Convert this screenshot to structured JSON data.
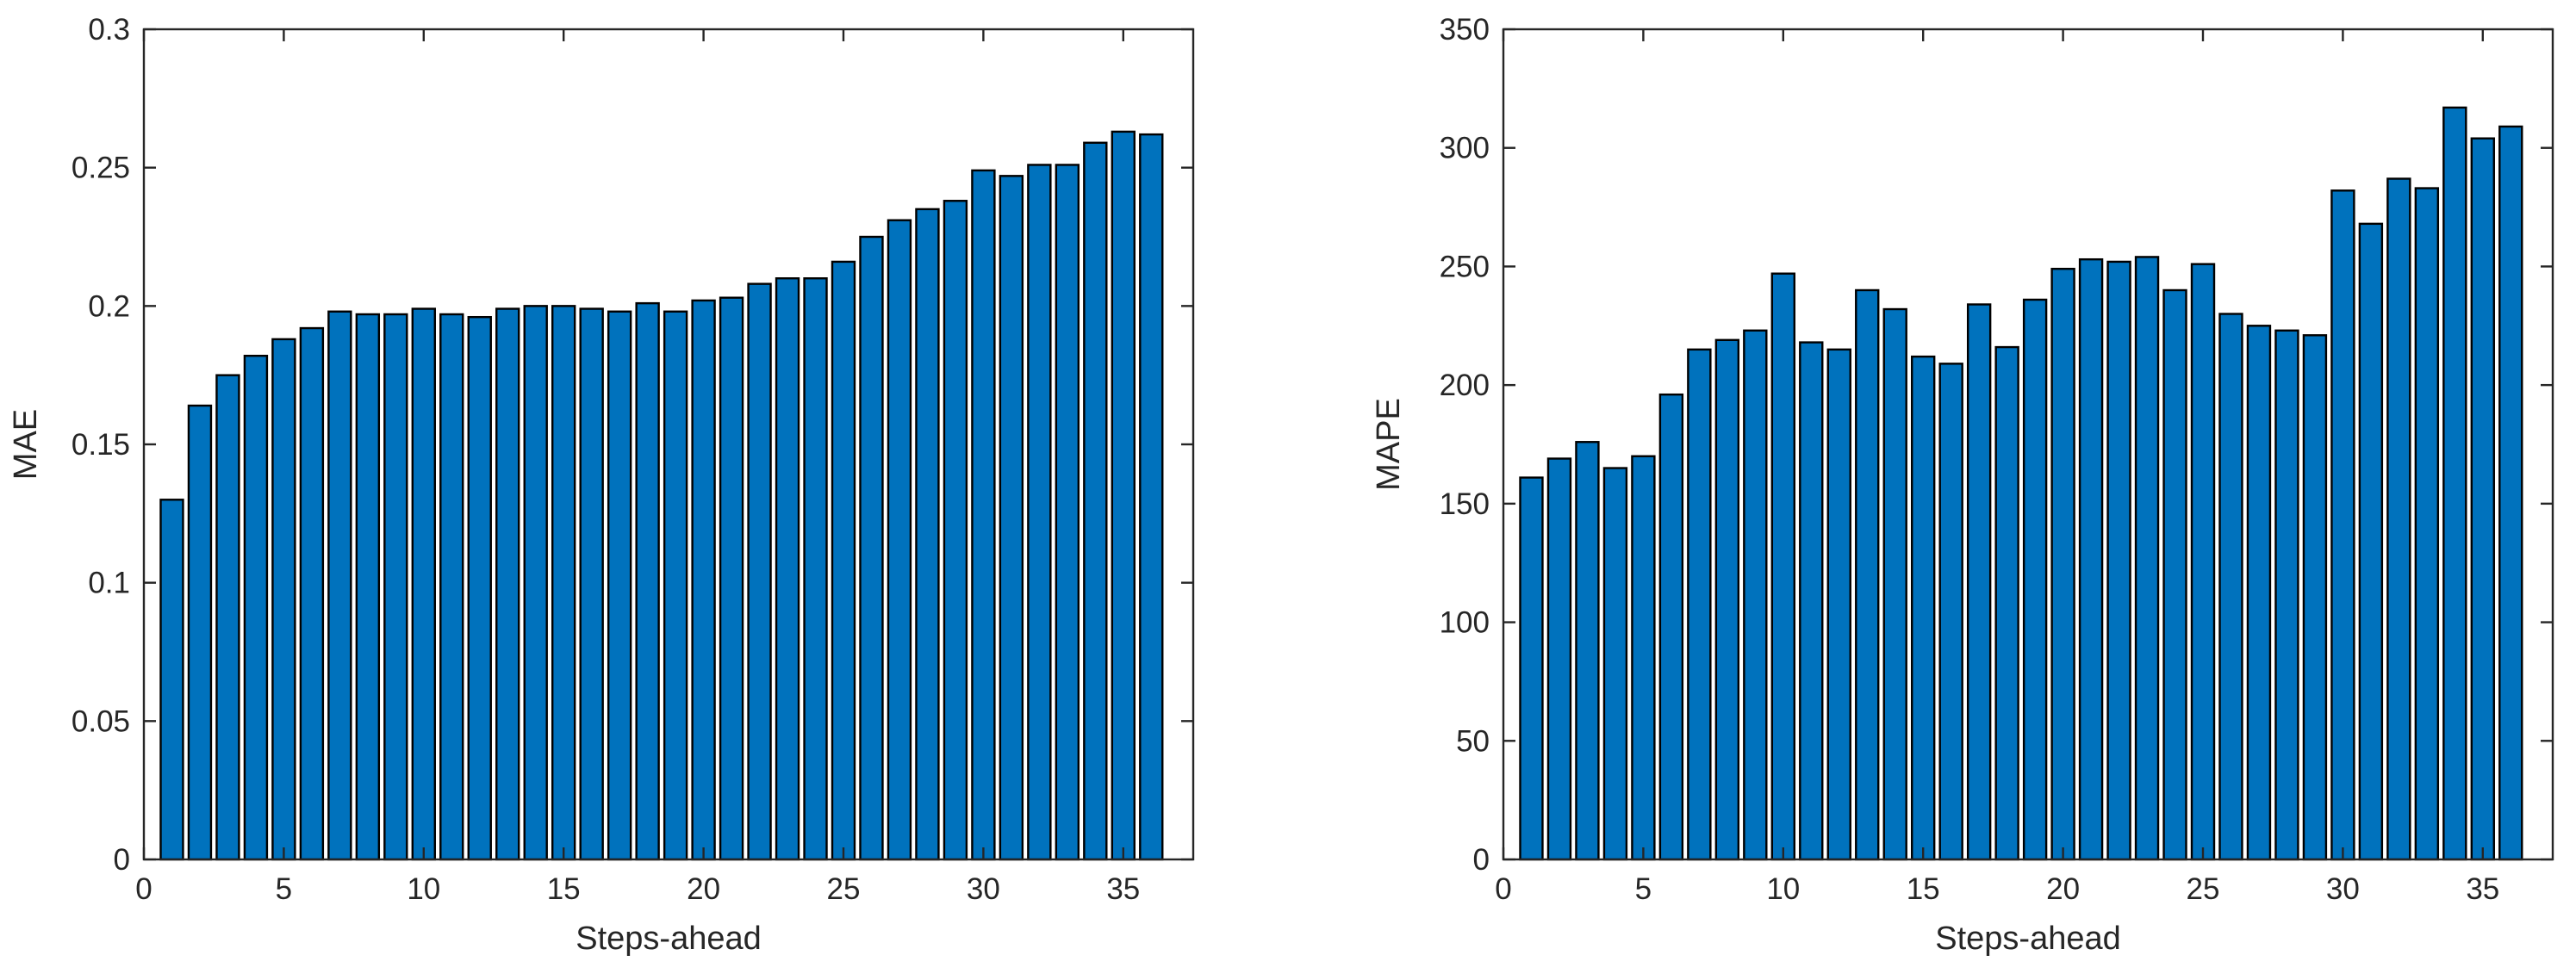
{
  "chart_data": [
    {
      "type": "bar",
      "title": "",
      "xlabel": "Steps-ahead",
      "ylabel": "MAE",
      "xlim": [
        0,
        37.5
      ],
      "ylim": [
        0,
        0.3
      ],
      "xticks": [
        0,
        5,
        10,
        15,
        20,
        25,
        30,
        35
      ],
      "xtick_labels": [
        "0",
        "5",
        "10",
        "15",
        "20",
        "25",
        "30",
        "35"
      ],
      "yticks": [
        0,
        0.05,
        0.1,
        0.15,
        0.2,
        0.25,
        0.3
      ],
      "ytick_labels": [
        "0",
        "0.05",
        "0.1",
        "0.15",
        "0.2",
        "0.25",
        "0.3"
      ],
      "bar_color": "#0072BD",
      "grid": false,
      "x": [
        1,
        2,
        3,
        4,
        5,
        6,
        7,
        8,
        9,
        10,
        11,
        12,
        13,
        14,
        15,
        16,
        17,
        18,
        19,
        20,
        21,
        22,
        23,
        24,
        25,
        26,
        27,
        28,
        29,
        30,
        31,
        32,
        33,
        34,
        35,
        36
      ],
      "values": [
        0.13,
        0.164,
        0.175,
        0.182,
        0.188,
        0.192,
        0.198,
        0.197,
        0.197,
        0.199,
        0.197,
        0.196,
        0.199,
        0.2,
        0.2,
        0.199,
        0.198,
        0.201,
        0.198,
        0.202,
        0.203,
        0.208,
        0.21,
        0.21,
        0.216,
        0.225,
        0.231,
        0.235,
        0.238,
        0.249,
        0.247,
        0.251,
        0.251,
        0.259,
        0.263,
        0.262
      ]
    },
    {
      "type": "bar",
      "title": "",
      "xlabel": "Steps-ahead",
      "ylabel": "MAPE",
      "xlim": [
        0,
        37.5
      ],
      "ylim": [
        0,
        350
      ],
      "xticks": [
        0,
        5,
        10,
        15,
        20,
        25,
        30,
        35
      ],
      "xtick_labels": [
        "0",
        "5",
        "10",
        "15",
        "20",
        "25",
        "30",
        "35"
      ],
      "yticks": [
        0,
        50,
        100,
        150,
        200,
        250,
        300,
        350
      ],
      "ytick_labels": [
        "0",
        "50",
        "100",
        "150",
        "200",
        "250",
        "300",
        "350"
      ],
      "bar_color": "#0072BD",
      "grid": false,
      "x": [
        1,
        2,
        3,
        4,
        5,
        6,
        7,
        8,
        9,
        10,
        11,
        12,
        13,
        14,
        15,
        16,
        17,
        18,
        19,
        20,
        21,
        22,
        23,
        24,
        25,
        26,
        27,
        28,
        29,
        30,
        31,
        32,
        33,
        34,
        35,
        36
      ],
      "values": [
        161,
        169,
        176,
        165,
        170,
        196,
        215,
        219,
        223,
        247,
        218,
        215,
        240,
        232,
        212,
        209,
        234,
        216,
        236,
        249,
        253,
        252,
        254,
        240,
        251,
        230,
        225,
        223,
        221,
        282,
        268,
        287,
        283,
        317,
        304,
        309
      ]
    }
  ]
}
